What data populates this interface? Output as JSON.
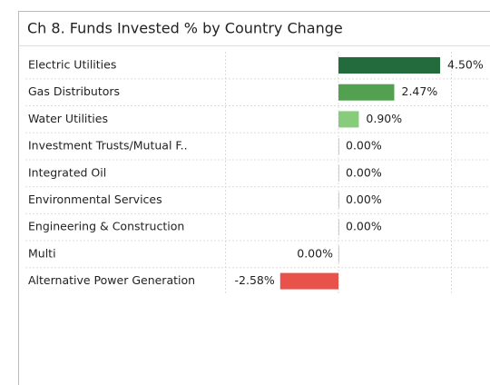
{
  "chart_data": {
    "type": "barh",
    "title": "Ch 8.  Funds Invested % by Country Change",
    "categories": [
      "Electric Utilities",
      "Gas Distributors",
      "Water Utilities",
      "Investment Trusts/Mutual F..",
      "Integrated Oil",
      "Environmental Services",
      "Engineering & Construction",
      "Multi",
      "Alternative Power Generation"
    ],
    "values": [
      4.5,
      2.47,
      0.9,
      0,
      0,
      0,
      0,
      -0.001,
      -2.58
    ],
    "value_labels": [
      "4.50%",
      "2.47%",
      "0.90%",
      "0.00%",
      "0.00%",
      "0.00%",
      "0.00%",
      "0.00%",
      "-2.58%"
    ],
    "colors": [
      "#236b3c",
      "#52a150",
      "#86cc7b",
      "#cccccc",
      "#cccccc",
      "#cccccc",
      "#cccccc",
      "#cccccc",
      "#e8524a"
    ],
    "xlim": [
      -5,
      5
    ],
    "xticks": [
      -5,
      0,
      5
    ],
    "grid": true
  }
}
